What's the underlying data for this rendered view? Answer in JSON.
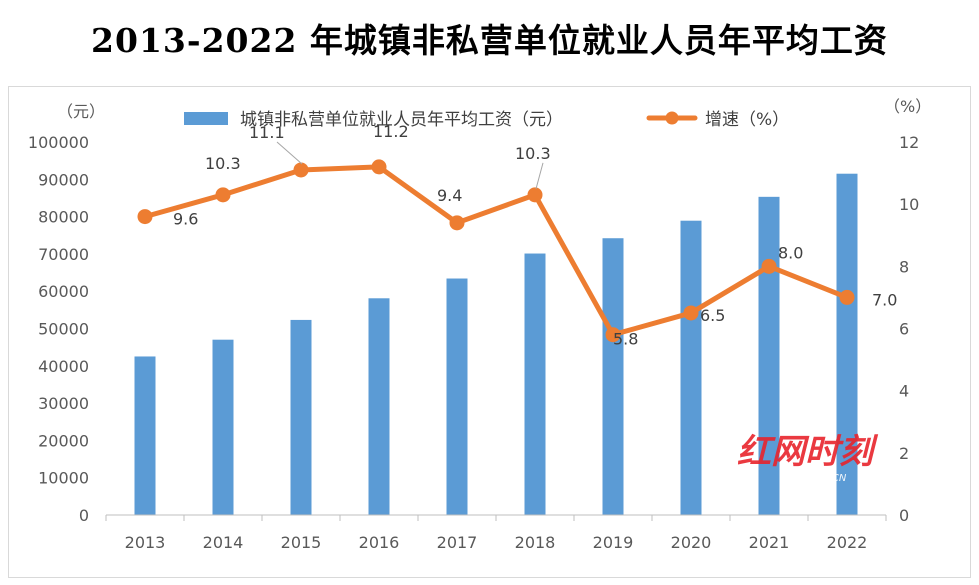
{
  "title": "2013-2022 年城镇非私营单位就业人员年平均工资",
  "colors": {
    "bar": "#5b9bd5",
    "line": "#ed7d31",
    "grid": "#d9d9d9",
    "axis": "#bfbfbf"
  },
  "watermark": {
    "text": "红网时刻",
    "subtext": "REDNET.CN"
  },
  "chart_data": {
    "type": "bar",
    "categories": [
      "2013",
      "2014",
      "2015",
      "2016",
      "2017",
      "2018",
      "2019",
      "2020",
      "2021",
      "2022"
    ],
    "series": [
      {
        "name": "城镇非私营单位就业人员年平均工资（元）",
        "type": "bar",
        "axis": "left",
        "values": [
          42500,
          47000,
          52300,
          58100,
          63400,
          70100,
          74200,
          78900,
          85300,
          91500
        ]
      },
      {
        "name": "增速（%）",
        "type": "line",
        "axis": "right",
        "values": [
          9.6,
          10.3,
          11.1,
          11.2,
          9.4,
          10.3,
          5.8,
          6.5,
          8.0,
          7.0
        ],
        "labels": [
          "9.6",
          "10.3",
          "11.1",
          "11.2",
          "9.4",
          "10.3",
          "5.8",
          "6.5",
          "8.0",
          "7.0"
        ]
      }
    ],
    "y_left": {
      "unit_label": "（元）",
      "min": 0,
      "max": 100000,
      "step": 10000,
      "ticks": [
        "0",
        "10000",
        "20000",
        "30000",
        "40000",
        "50000",
        "60000",
        "70000",
        "80000",
        "90000",
        "100000"
      ]
    },
    "y_right": {
      "unit_label": "（%）",
      "min": 0,
      "max": 12,
      "step": 2,
      "ticks": [
        "0",
        "2",
        "4",
        "6",
        "8",
        "10",
        "12"
      ]
    },
    "grid": false,
    "legend_position": "top"
  }
}
